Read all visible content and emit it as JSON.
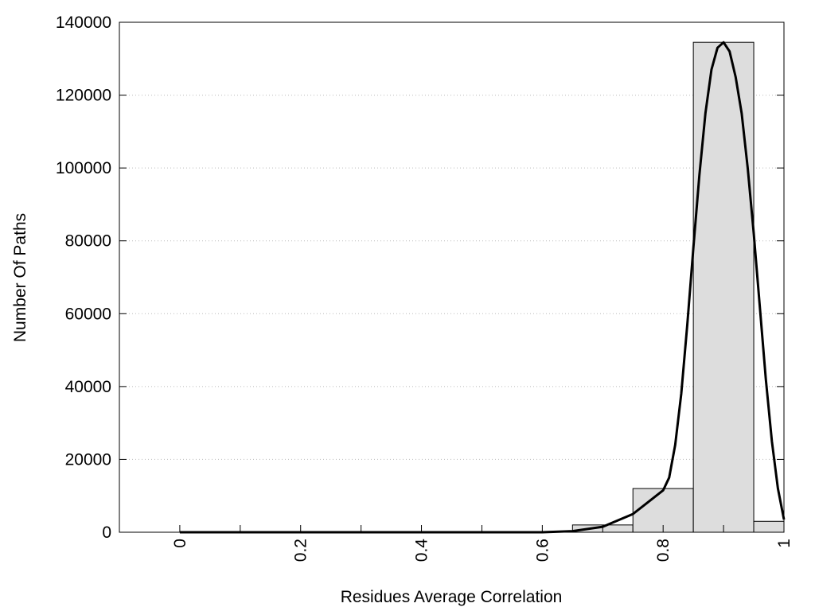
{
  "chart_data": {
    "type": "histogram",
    "xlabel": "Residues Average Correlation",
    "ylabel": "Number Of Paths",
    "bins": [
      0,
      0.05,
      0.15,
      0.25,
      0.35,
      0.45,
      0.55,
      0.65,
      0.75,
      0.85,
      0.95,
      1.0
    ],
    "counts": [
      0,
      0,
      0,
      0,
      0,
      0,
      100,
      2000,
      12000,
      134500,
      3000
    ],
    "color": "#dddddd",
    "curve": {
      "type": "line",
      "color": "#000000",
      "x": [
        0,
        0.6,
        0.65,
        0.7,
        0.75,
        0.8,
        0.81,
        0.82,
        0.83,
        0.84,
        0.85,
        0.86,
        0.87,
        0.88,
        0.89,
        0.9,
        0.91,
        0.92,
        0.93,
        0.94,
        0.95,
        0.96,
        0.97,
        0.98,
        0.99,
        1.0
      ],
      "values": [
        0,
        0,
        300,
        1500,
        5000,
        11500,
        15000,
        24000,
        38000,
        57000,
        78000,
        98000,
        115000,
        127000,
        133000,
        134500,
        132000,
        125000,
        115000,
        100000,
        82000,
        62000,
        42000,
        25000,
        12000,
        3500
      ]
    },
    "xlim": [
      -0.1,
      1
    ],
    "ylim": [
      0,
      140000
    ],
    "xticks": [
      0,
      0.2,
      0.4,
      0.6,
      0.8,
      1
    ],
    "xticks_minor": [
      0.1,
      0.3,
      0.5,
      0.7,
      0.9
    ],
    "yticks": [
      0,
      20000,
      40000,
      60000,
      80000,
      100000,
      120000,
      140000
    ],
    "grid": true
  }
}
